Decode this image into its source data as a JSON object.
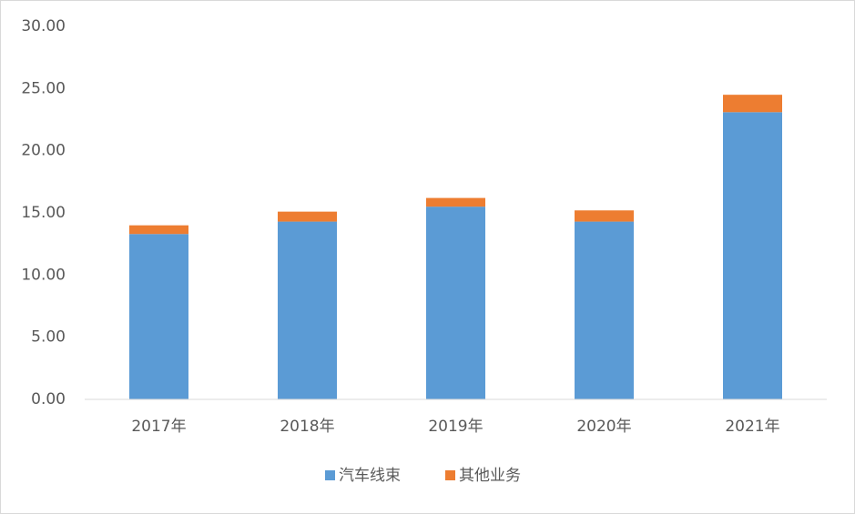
{
  "chart_data": {
    "type": "stacked_bar",
    "categories": [
      "2017年",
      "2018年",
      "2019年",
      "2020年",
      "2021年"
    ],
    "series": [
      {
        "name": "汽车线束",
        "color": "#5b9bd5",
        "values": [
          13.3,
          14.3,
          15.5,
          14.3,
          23.1
        ]
      },
      {
        "name": "其他业务",
        "color": "#ed7d31",
        "values": [
          0.7,
          0.8,
          0.7,
          0.9,
          1.4
        ]
      }
    ],
    "ylim": [
      0,
      30
    ],
    "yticks": [
      {
        "value": 0,
        "label": "0.00"
      },
      {
        "value": 5,
        "label": "5.00"
      },
      {
        "value": 10,
        "label": "10.00"
      },
      {
        "value": 15,
        "label": "15.00"
      },
      {
        "value": 20,
        "label": "20.00"
      },
      {
        "value": 25,
        "label": "25.00"
      },
      {
        "value": 30,
        "label": "30.00"
      }
    ],
    "grid": false,
    "legend": "bottom"
  }
}
